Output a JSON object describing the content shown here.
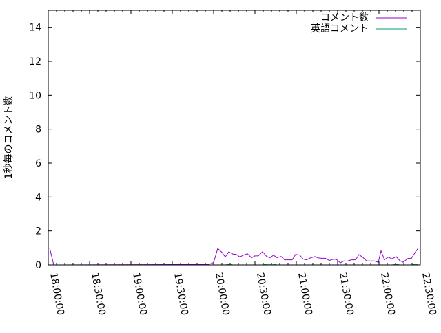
{
  "chart_data": {
    "type": "line",
    "title": "",
    "xlabel": "",
    "ylabel": "1秒毎のコメント数",
    "xlim": [
      "18:00:00",
      "22:30:00"
    ],
    "ylim": [
      0,
      15
    ],
    "x_ticks": [
      "18:00:00",
      "18:30:00",
      "19:00:00",
      "19:30:00",
      "20:00:00",
      "20:30:00",
      "21:00:00",
      "21:30:00",
      "22:00:00",
      "22:30:00"
    ],
    "y_ticks": [
      0,
      2,
      4,
      6,
      8,
      10,
      12,
      14
    ],
    "grid": false,
    "legend_position": "top-right",
    "x": [
      "18:01:00",
      "18:04:00",
      "19:56:30",
      "20:00:00",
      "20:03:00",
      "20:06:00",
      "20:08:30",
      "20:11:00",
      "20:14:00",
      "20:16:30",
      "20:19:00",
      "20:21:30",
      "20:24:30",
      "20:27:30",
      "20:30:00",
      "20:32:30",
      "20:35:30",
      "20:38:30",
      "20:41:00",
      "20:43:30",
      "20:46:00",
      "20:49:00",
      "20:51:30",
      "20:54:00",
      "20:57:00",
      "20:59:30",
      "21:02:30",
      "21:05:00",
      "21:07:30",
      "21:10:30",
      "21:13:30",
      "21:16:00",
      "21:18:30",
      "21:21:00",
      "21:24:00",
      "21:26:30",
      "21:29:00",
      "21:32:00",
      "21:34:30",
      "21:37:00",
      "21:40:00",
      "21:43:00",
      "21:45:30",
      "21:48:30",
      "21:51:00",
      "21:54:00",
      "21:56:30",
      "21:59:30",
      "22:01:30",
      "22:04:00",
      "22:06:30",
      "22:09:30",
      "22:12:30",
      "22:15:00",
      "22:17:30",
      "22:21:00",
      "22:23:30",
      "22:26:30",
      "22:28:30"
    ],
    "series": [
      {
        "name": "コメント数",
        "color": "#9400d3",
        "values": [
          1.0,
          0,
          0.03,
          0.14,
          0.97,
          0.74,
          0.47,
          0.77,
          0.64,
          0.62,
          0.47,
          0.57,
          0.66,
          0.42,
          0.53,
          0.54,
          0.78,
          0.5,
          0.43,
          0.57,
          0.43,
          0.5,
          0.3,
          0.3,
          0.3,
          0.62,
          0.58,
          0.34,
          0.3,
          0.42,
          0.49,
          0.41,
          0.39,
          0.39,
          0.26,
          0.33,
          0.33,
          0.12,
          0.23,
          0.22,
          0.3,
          0.3,
          0.61,
          0.43,
          0.23,
          0.23,
          0.23,
          0.16,
          0.83,
          0.3,
          0.46,
          0.36,
          0.49,
          0.26,
          0.16,
          0.38,
          0.38,
          0.77,
          0.99
        ]
      },
      {
        "name": "英語コメント",
        "color": "#009e73",
        "values": [
          0,
          0,
          0,
          0,
          0,
          0,
          0,
          0.04,
          0,
          0,
          0,
          0,
          0,
          0,
          0,
          0,
          0,
          0.05,
          0.05,
          0.05,
          0,
          0,
          0,
          0,
          0,
          0,
          0,
          0,
          0,
          0,
          0,
          0,
          0,
          0,
          0,
          0,
          0,
          0,
          0,
          0,
          0,
          0,
          0,
          0,
          0,
          0,
          0,
          0,
          0,
          0,
          0,
          0,
          0.04,
          0,
          0,
          0,
          0,
          0.05,
          0.03
        ]
      }
    ]
  }
}
